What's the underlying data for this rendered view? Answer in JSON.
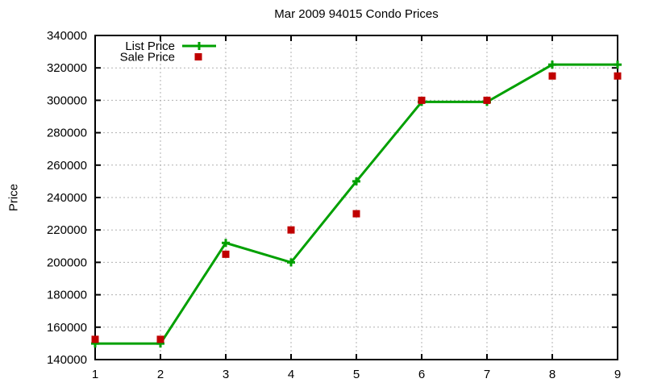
{
  "colors": {
    "background": "#ffffff",
    "border": "#000000",
    "grid": "#b0b0b0",
    "text": "#000000",
    "list_price": "#00a000",
    "sale_price": "#c00000"
  },
  "chart_data": {
    "type": "line",
    "title": "Mar 2009 94015 Condo Prices",
    "xlabel": "",
    "ylabel": "Price",
    "xlim": [
      1,
      9
    ],
    "ylim": [
      140000,
      340000
    ],
    "x_ticks": [
      1,
      2,
      3,
      4,
      5,
      6,
      7,
      8,
      9
    ],
    "y_ticks": [
      140000,
      160000,
      180000,
      200000,
      220000,
      240000,
      260000,
      280000,
      300000,
      320000,
      340000
    ],
    "grid": true,
    "legend_position": "top-left-inside",
    "x": [
      1,
      2,
      3,
      4,
      5,
      6,
      7,
      8,
      9
    ],
    "series": [
      {
        "name": "List Price",
        "type": "line",
        "marker": "plus",
        "color": "#00a000",
        "values": [
          149900,
          149900,
          212000,
          200000,
          250000,
          299000,
          299000,
          322000,
          322000
        ]
      },
      {
        "name": "Sale Price",
        "type": "scatter",
        "marker": "square",
        "color": "#c00000",
        "values": [
          152500,
          152500,
          205000,
          220000,
          230000,
          300000,
          300000,
          315000,
          315000
        ]
      }
    ]
  }
}
